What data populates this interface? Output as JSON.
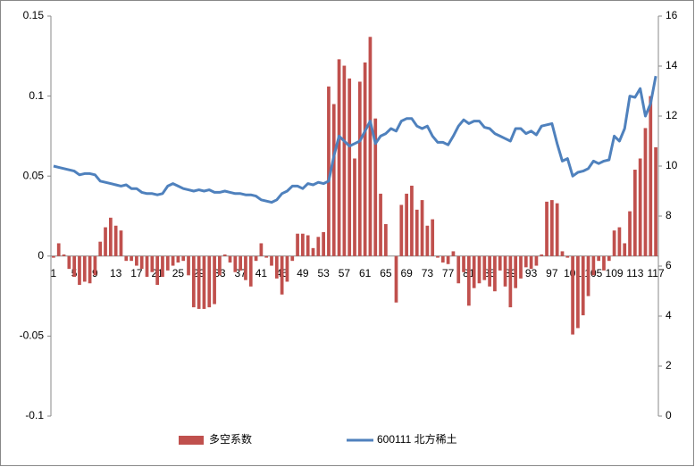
{
  "chart_data": {
    "type": "bar",
    "categories": [
      "1",
      null,
      null,
      null,
      "5",
      null,
      null,
      null,
      "9",
      null,
      null,
      null,
      "13",
      null,
      null,
      null,
      "17",
      null,
      null,
      null,
      "21",
      null,
      null,
      null,
      "25",
      null,
      null,
      null,
      "29",
      null,
      null,
      null,
      "33",
      null,
      null,
      null,
      "37",
      null,
      null,
      null,
      "41",
      null,
      null,
      null,
      "45",
      null,
      null,
      null,
      "49",
      null,
      null,
      null,
      "53",
      null,
      null,
      null,
      "57",
      null,
      null,
      null,
      "61",
      null,
      null,
      null,
      "65",
      null,
      null,
      null,
      "69",
      null,
      null,
      null,
      "73",
      null,
      null,
      null,
      "77",
      null,
      null,
      null,
      "81",
      null,
      null,
      null,
      "85",
      null,
      null,
      null,
      "89",
      null,
      null,
      null,
      "93",
      null,
      null,
      null,
      "97",
      null,
      null,
      null,
      "101",
      null,
      null,
      null,
      "105",
      null,
      null,
      null,
      "109",
      null,
      null,
      null,
      "113",
      null,
      null,
      null,
      "117"
    ],
    "series": [
      {
        "name": "多空系数",
        "type": "bar",
        "color": "#c0504d",
        "values": [
          -0.001,
          0.008,
          0.001,
          -0.008,
          -0.013,
          -0.018,
          -0.016,
          -0.017,
          -0.012,
          0.009,
          0.018,
          0.024,
          0.019,
          0.016,
          -0.003,
          -0.003,
          -0.006,
          -0.008,
          -0.013,
          -0.01,
          -0.018,
          -0.013,
          -0.009,
          -0.006,
          -0.004,
          -0.003,
          -0.012,
          -0.032,
          -0.033,
          -0.033,
          -0.032,
          -0.03,
          -0.012,
          0.001,
          -0.004,
          -0.01,
          -0.009,
          -0.015,
          -0.019,
          -0.003,
          0.008,
          -0.001,
          -0.006,
          -0.014,
          -0.024,
          -0.016,
          -0.003,
          0.014,
          0.014,
          0.013,
          0.005,
          0.012,
          0.015,
          0.106,
          0.095,
          0.123,
          0.119,
          0.111,
          0.061,
          0.109,
          0.121,
          0.137,
          0.086,
          0.039,
          0.02,
          0,
          -0.029,
          0.032,
          0.039,
          0.044,
          0.029,
          0.035,
          0.019,
          0.023,
          -0.001,
          -0.004,
          -0.005,
          0.003,
          -0.017,
          -0.01,
          -0.031,
          -0.02,
          -0.017,
          -0.015,
          -0.019,
          -0.022,
          -0.009,
          -0.019,
          -0.032,
          -0.02,
          -0.014,
          -0.007,
          -0.008,
          -0.006,
          0.001,
          0.034,
          0.035,
          0.033,
          0.003,
          -0.001,
          -0.049,
          -0.045,
          -0.037,
          -0.025,
          -0.012,
          -0.003,
          -0.009,
          -0.003,
          0.016,
          0.018,
          0.008,
          0.028,
          0.054,
          0.061,
          0.08,
          0.1,
          0.068
        ]
      },
      {
        "name": "600111 北方稀土",
        "type": "line",
        "axis": "y2",
        "color": "#4f81bd",
        "values": [
          10.0,
          9.95,
          9.9,
          9.85,
          9.8,
          9.65,
          9.7,
          9.7,
          9.65,
          9.4,
          9.35,
          9.3,
          9.25,
          9.2,
          9.25,
          9.1,
          9.1,
          8.95,
          8.9,
          8.9,
          8.85,
          8.9,
          9.2,
          9.3,
          9.2,
          9.1,
          9.05,
          9.0,
          9.05,
          9.0,
          9.05,
          8.95,
          8.95,
          9.0,
          8.95,
          8.9,
          8.9,
          8.85,
          8.85,
          8.8,
          8.65,
          8.6,
          8.55,
          8.65,
          8.9,
          9.0,
          9.2,
          9.2,
          9.1,
          9.3,
          9.25,
          9.35,
          9.3,
          9.4,
          10.4,
          11.2,
          11.0,
          10.8,
          10.9,
          11.0,
          11.4,
          11.8,
          10.9,
          11.2,
          11.3,
          11.5,
          11.4,
          11.8,
          11.9,
          11.9,
          11.6,
          11.5,
          11.6,
          11.2,
          10.95,
          10.95,
          10.85,
          11.2,
          11.6,
          11.85,
          11.7,
          11.8,
          11.8,
          11.55,
          11.5,
          11.3,
          11.2,
          11.1,
          11.0,
          11.5,
          11.5,
          11.3,
          11.4,
          11.25,
          11.6,
          11.65,
          11.7,
          10.9,
          10.2,
          10.3,
          9.6,
          9.75,
          9.8,
          9.9,
          10.2,
          10.1,
          10.2,
          10.25,
          11.2,
          11.0,
          11.5,
          12.8,
          12.75,
          13.1,
          12.0,
          12.5,
          13.6
        ]
      }
    ],
    "ylim": [
      -0.1,
      0.15
    ],
    "yticks": [
      -0.1,
      -0.05,
      0,
      0.05,
      0.1,
      0.15
    ],
    "y2lim": [
      0,
      16
    ],
    "y2ticks": [
      0,
      2,
      4,
      6,
      8,
      10,
      12,
      14,
      16
    ],
    "legend": "bottom"
  }
}
